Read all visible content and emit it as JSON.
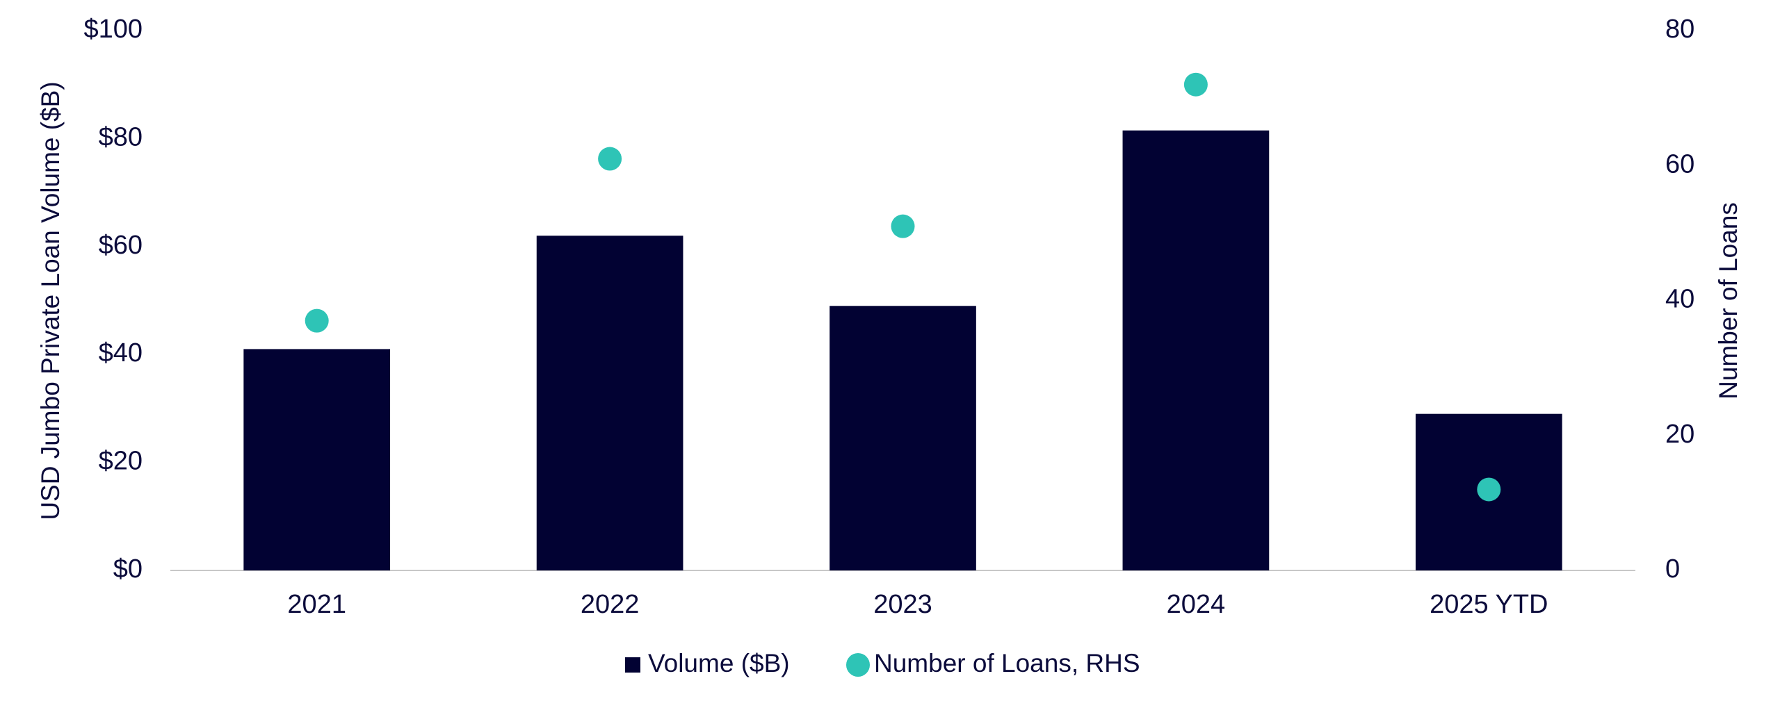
{
  "chart_data": {
    "type": "bar",
    "categories": [
      "2021",
      "2022",
      "2023",
      "2024",
      "2025 YTD"
    ],
    "series": [
      {
        "name": "Volume ($B)",
        "type": "bar",
        "color": "#020233",
        "values": [
          41,
          62,
          49,
          81.5,
          29
        ]
      },
      {
        "name": "Number of Loans, RHS",
        "type": "scatter",
        "axis": "y2",
        "color": "#2ec4b6",
        "values": [
          37,
          61,
          51,
          72,
          12
        ]
      }
    ],
    "ylabel": "USD Jumbo Private Loan Volume ($B)",
    "y2label": "Number of Loans",
    "ylim": [
      0,
      100
    ],
    "yticks": [
      {
        "value": 0,
        "label": "$0"
      },
      {
        "value": 20,
        "label": "$20"
      },
      {
        "value": 40,
        "label": "$40"
      },
      {
        "value": 60,
        "label": "$60"
      },
      {
        "value": 80,
        "label": "$80"
      },
      {
        "value": 100,
        "label": "$100"
      }
    ],
    "y2lim": [
      0,
      80
    ],
    "y2ticks": [
      0,
      20,
      40,
      60,
      80
    ],
    "grid": false,
    "legend": "bottom"
  }
}
